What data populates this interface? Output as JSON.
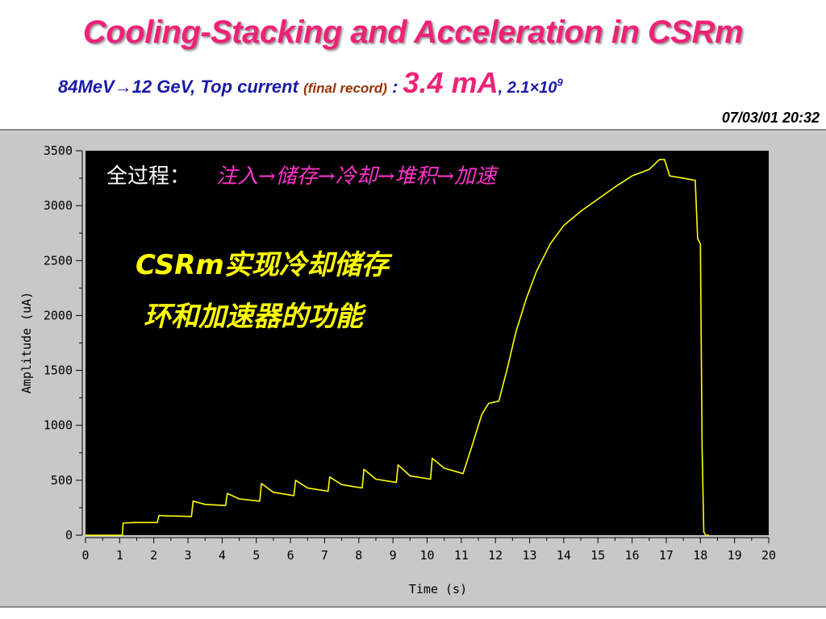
{
  "slide": {
    "title": "Cooling-Stacking and Acceleration in CSRm",
    "subtitle_part1": "84MeV→12 GeV, Top current",
    "subtitle_part2": "(final record)",
    "subtitle_part3": " : ",
    "subtitle_part4": "3.4 mA",
    "subtitle_part5": ", 2.1×10",
    "subtitle_sup": "9",
    "timestamp": "07/03/01 20:32"
  },
  "annotations": {
    "process_label": "全过程：",
    "process_steps": "注入→储存→冷却→堆积→加速",
    "highlight_line1": "CSRm实现冷却储存",
    "highlight_line2": "环和加速器的功能"
  },
  "colors": {
    "plot_background": "#000000",
    "trace": "#ffff00",
    "title": "#ee2277",
    "subtitle": "#1a1aa8"
  },
  "chart_data": {
    "type": "line",
    "title": "",
    "xlabel": "Time (s)",
    "ylabel": "Amplitude (uA)",
    "xlim": [
      0,
      20
    ],
    "ylim": [
      0,
      3500
    ],
    "x_ticks": [
      0,
      1,
      2,
      3,
      4,
      5,
      6,
      7,
      8,
      9,
      10,
      11,
      12,
      13,
      14,
      15,
      16,
      17,
      18,
      19,
      20
    ],
    "y_ticks": [
      0,
      500,
      1000,
      1500,
      2000,
      2500,
      3000,
      3500
    ],
    "grid": false,
    "series": [
      {
        "x": [
          0,
          1.08,
          1.1,
          1.4,
          2.1,
          2.15,
          2.4,
          3.1,
          3.15,
          3.5,
          4.1,
          4.15,
          4.5,
          5.1,
          5.15,
          5.5,
          6.1,
          6.15,
          6.5,
          7.1,
          7.15,
          7.5,
          8.1,
          8.15,
          8.5,
          9.1,
          9.15,
          9.5,
          10.1,
          10.15,
          10.5,
          10.95,
          11.05,
          11.3,
          11.6,
          11.8,
          12.1,
          12.35,
          12.6,
          12.9,
          13.2,
          13.6,
          14.0,
          14.5,
          15.0,
          15.5,
          16.0,
          16.5,
          16.8,
          16.95,
          17.1,
          17.5,
          17.85,
          17.92,
          18.0,
          18.05,
          18.1,
          18.15,
          18.25
        ],
        "y": [
          0,
          0,
          110,
          115,
          115,
          180,
          175,
          170,
          310,
          280,
          270,
          380,
          330,
          310,
          470,
          390,
          360,
          500,
          430,
          400,
          530,
          460,
          430,
          600,
          510,
          480,
          640,
          540,
          510,
          700,
          610,
          570,
          560,
          800,
          1100,
          1200,
          1220,
          1520,
          1850,
          2150,
          2400,
          2650,
          2820,
          2950,
          3060,
          3170,
          3270,
          3330,
          3420,
          3420,
          3270,
          3250,
          3230,
          2700,
          2650,
          800,
          30,
          0,
          0
        ]
      }
    ]
  }
}
